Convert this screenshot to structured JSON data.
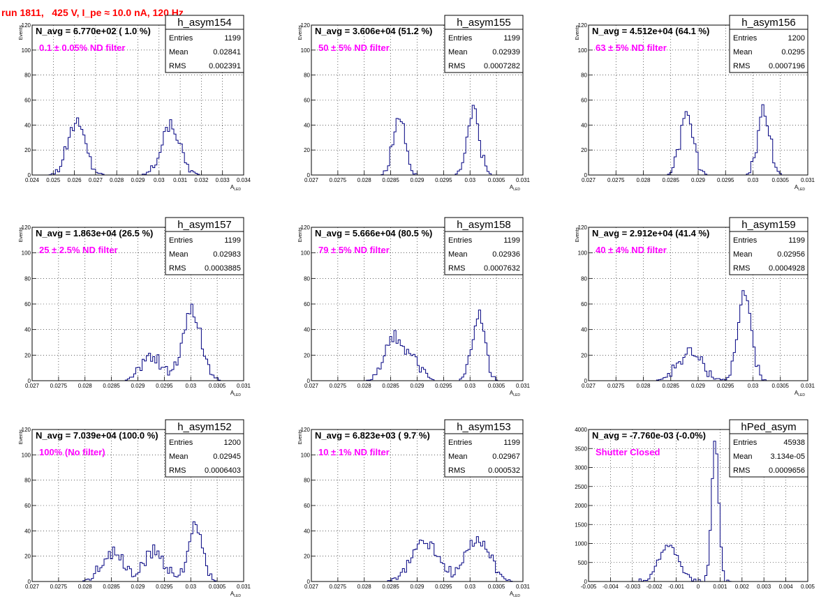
{
  "page_title": "run 1811,   425 V, I_pe ≈ 10.0 nA, 120 Hz",
  "colors": {
    "hist": "#000080",
    "label": "#ff00ff",
    "title": "#ff0000",
    "frame": "#000000",
    "grid": "#000000"
  },
  "chart_data": [
    {
      "type": "bar",
      "hist_name": "h_asym154",
      "navg": "N_avg = 6.770e+02 ( 1.0 %)",
      "filter": "0.1 ± 0.05% ND filter",
      "stats": {
        "entries": "1199",
        "mean": "0.02841",
        "rms": "0.002391"
      },
      "ylabel": "Events",
      "xlabel": "A_LED",
      "xlim": [
        0.024,
        0.034
      ],
      "ylim": [
        0,
        120
      ],
      "xticks": [
        0.024,
        0.025,
        0.026,
        0.027,
        0.028,
        0.029,
        0.03,
        0.031,
        0.032,
        0.033,
        0.034
      ],
      "xtick_labels": [
        "0.024",
        "0.025",
        "0.026",
        "0.027",
        "0.028",
        "0.029",
        "0.03",
        "0.031",
        "0.032",
        "0.033",
        "0.034"
      ],
      "yticks": [
        0,
        20,
        40,
        60,
        80,
        100,
        120
      ],
      "peaks": [
        {
          "mu": 0.0261,
          "sigma": 0.00042,
          "amp": 42,
          "jitter": 5
        },
        {
          "mu": 0.03055,
          "sigma": 0.00045,
          "amp": 40,
          "jitter": 5
        }
      ],
      "bin_width": 0.0001
    },
    {
      "type": "bar",
      "hist_name": "h_asym155",
      "navg": "N_avg = 3.606e+04 (51.2 %)",
      "filter": "50 ± 5% ND filter",
      "stats": {
        "entries": "1199",
        "mean": "0.02939",
        "rms": "0.0007282"
      },
      "ylabel": "Events",
      "xlabel": "A_LED",
      "xlim": [
        0.027,
        0.031
      ],
      "ylim": [
        0,
        120
      ],
      "xticks": [
        0.027,
        0.0275,
        0.028,
        0.0285,
        0.029,
        0.0295,
        0.03,
        0.0305,
        0.031
      ],
      "xtick_labels": [
        "0.027",
        "0.0275",
        "0.028",
        "0.0285",
        "0.029",
        "0.0295",
        "0.03",
        "0.0305",
        "0.031"
      ],
      "yticks": [
        0,
        20,
        40,
        60,
        80,
        100,
        120
      ],
      "peaks": [
        {
          "mu": 0.02866,
          "sigma": 0.00011,
          "amp": 50,
          "jitter": 6
        },
        {
          "mu": 0.03006,
          "sigma": 0.00011,
          "amp": 52,
          "jitter": 6
        }
      ],
      "bin_width": 4e-05
    },
    {
      "type": "bar",
      "hist_name": "h_asym156",
      "navg": "N_avg = 4.512e+04 (64.1 %)",
      "filter": "63 ± 5% ND filter",
      "stats": {
        "entries": "1200",
        "mean": "0.0295",
        "rms": "0.0007196"
      },
      "ylabel": "Events",
      "xlabel": "A_LED",
      "xlim": [
        0.027,
        0.031
      ],
      "ylim": [
        0,
        120
      ],
      "xticks": [
        0.027,
        0.0275,
        0.028,
        0.0285,
        0.029,
        0.0295,
        0.03,
        0.0305,
        0.031
      ],
      "xtick_labels": [
        "0.027",
        "0.0275",
        "0.028",
        "0.0285",
        "0.029",
        "0.0295",
        "0.03",
        "0.0305",
        "0.031"
      ],
      "yticks": [
        0,
        20,
        40,
        60,
        80,
        100,
        120
      ],
      "peaks": [
        {
          "mu": 0.02879,
          "sigma": 0.00012,
          "amp": 46,
          "jitter": 6
        },
        {
          "mu": 0.0302,
          "sigma": 0.00011,
          "amp": 52,
          "jitter": 6
        }
      ],
      "bin_width": 4e-05
    },
    {
      "type": "bar",
      "hist_name": "h_asym157",
      "navg": "N_avg = 1.863e+04 (26.5 %)",
      "filter": "25 ± 2.5% ND filter",
      "stats": {
        "entries": "1199",
        "mean": "0.02983",
        "rms": "0.0003885"
      },
      "ylabel": "Events",
      "xlabel": "A_LED",
      "xlim": [
        0.027,
        0.031
      ],
      "ylim": [
        0,
        120
      ],
      "xticks": [
        0.027,
        0.0275,
        0.028,
        0.0285,
        0.029,
        0.0295,
        0.03,
        0.0305,
        0.031
      ],
      "xtick_labels": [
        "0.027",
        "0.0275",
        "0.028",
        "0.0285",
        "0.029",
        "0.0295",
        "0.03",
        "0.0305",
        "0.031"
      ],
      "yticks": [
        0,
        20,
        40,
        60,
        80,
        100,
        120
      ],
      "peaks": [
        {
          "mu": 0.02925,
          "sigma": 0.00018,
          "amp": 20,
          "jitter": 5
        },
        {
          "mu": 0.03002,
          "sigma": 0.00018,
          "amp": 55,
          "jitter": 6
        }
      ],
      "bin_width": 4e-05
    },
    {
      "type": "bar",
      "hist_name": "h_asym158",
      "navg": "N_avg = 5.666e+04 (80.5 %)",
      "filter": "79 ± 5% ND filter",
      "stats": {
        "entries": "1199",
        "mean": "0.02936",
        "rms": "0.0007632"
      },
      "ylabel": "Events",
      "xlabel": "A_LED",
      "xlim": [
        0.027,
        0.031
      ],
      "ylim": [
        0,
        120
      ],
      "xticks": [
        0.027,
        0.0275,
        0.028,
        0.0285,
        0.029,
        0.0295,
        0.03,
        0.0305,
        0.031
      ],
      "xtick_labels": [
        "0.027",
        "0.0275",
        "0.028",
        "0.0285",
        "0.029",
        "0.0295",
        "0.03",
        "0.0305",
        "0.031"
      ],
      "yticks": [
        0,
        20,
        40,
        60,
        80,
        100,
        120
      ],
      "peaks": [
        {
          "mu": 0.02858,
          "sigma": 0.00018,
          "amp": 34,
          "jitter": 5
        },
        {
          "mu": 0.02895,
          "sigma": 0.00015,
          "amp": 12,
          "jitter": 4
        },
        {
          "mu": 0.03016,
          "sigma": 0.00012,
          "amp": 52,
          "jitter": 6
        }
      ],
      "bin_width": 4e-05
    },
    {
      "type": "bar",
      "hist_name": "h_asym159",
      "navg": "N_avg = 2.912e+04 (41.4 %)",
      "filter": "40 ± 4% ND filter",
      "stats": {
        "entries": "1199",
        "mean": "0.02956",
        "rms": "0.0004928"
      },
      "ylabel": "Events",
      "xlabel": "A_LED",
      "xlim": [
        0.027,
        0.031
      ],
      "ylim": [
        0,
        120
      ],
      "xticks": [
        0.027,
        0.0275,
        0.028,
        0.0285,
        0.029,
        0.0295,
        0.03,
        0.0305,
        0.031
      ],
      "xtick_labels": [
        "0.027",
        "0.0275",
        "0.028",
        "0.0285",
        "0.029",
        "0.0295",
        "0.03",
        "0.0305",
        "0.031"
      ],
      "yticks": [
        0,
        20,
        40,
        60,
        80,
        100,
        120
      ],
      "peaks": [
        {
          "mu": 0.02885,
          "sigma": 0.00022,
          "amp": 22,
          "jitter": 5
        },
        {
          "mu": 0.02985,
          "sigma": 0.00012,
          "amp": 70,
          "jitter": 8
        }
      ],
      "bin_width": 4e-05
    },
    {
      "type": "bar",
      "hist_name": "h_asym152",
      "navg": "N_avg = 7.039e+04 (100.0 %)",
      "filter": "100% (No filter)",
      "stats": {
        "entries": "1200",
        "mean": "0.02945",
        "rms": "0.0006403"
      },
      "ylabel": "Events",
      "xlabel": "A_LED",
      "xlim": [
        0.027,
        0.031
      ],
      "ylim": [
        0,
        120
      ],
      "xticks": [
        0.027,
        0.0275,
        0.028,
        0.0285,
        0.029,
        0.0295,
        0.03,
        0.0305,
        0.031
      ],
      "xtick_labels": [
        "0.027",
        "0.0275",
        "0.028",
        "0.0285",
        "0.029",
        "0.0295",
        "0.03",
        "0.0305",
        "0.031"
      ],
      "yticks": [
        0,
        20,
        40,
        60,
        80,
        100,
        120
      ],
      "peaks": [
        {
          "mu": 0.02852,
          "sigma": 0.0002,
          "amp": 24,
          "jitter": 6
        },
        {
          "mu": 0.02932,
          "sigma": 0.0002,
          "amp": 24,
          "jitter": 6
        },
        {
          "mu": 0.03008,
          "sigma": 0.00014,
          "amp": 42,
          "jitter": 8
        }
      ],
      "bin_width": 4e-05
    },
    {
      "type": "bar",
      "hist_name": "h_asym153",
      "navg": "N_avg = 6.823e+03 ( 9.7 %)",
      "filter": "10 ± 1% ND filter",
      "stats": {
        "entries": "1199",
        "mean": "0.02967",
        "rms": "0.000532"
      },
      "ylabel": "Events",
      "xlabel": "A_LED",
      "xlim": [
        0.027,
        0.031
      ],
      "ylim": [
        0,
        120
      ],
      "xticks": [
        0.027,
        0.0275,
        0.028,
        0.0285,
        0.029,
        0.0295,
        0.03,
        0.0305,
        0.031
      ],
      "xtick_labels": [
        "0.027",
        "0.0275",
        "0.028",
        "0.0285",
        "0.029",
        "0.0295",
        "0.03",
        "0.0305",
        "0.031"
      ],
      "yticks": [
        0,
        20,
        40,
        60,
        80,
        100,
        120
      ],
      "peaks": [
        {
          "mu": 0.02915,
          "sigma": 0.00025,
          "amp": 32,
          "jitter": 5
        },
        {
          "mu": 0.03015,
          "sigma": 0.00022,
          "amp": 34,
          "jitter": 5
        }
      ],
      "bin_width": 4e-05
    },
    {
      "type": "bar",
      "hist_name": "hPed_asym",
      "navg": "N_avg = -7.760e-03 (-0.0%)",
      "filter": "Shutter Closed",
      "stats": {
        "entries": "45938",
        "mean": "3.134e-05",
        "rms": "0.0009656"
      },
      "ylabel": "",
      "xlabel": "",
      "xlim": [
        -0.005,
        0.005
      ],
      "ylim": [
        0,
        4000
      ],
      "xticks": [
        -0.005,
        -0.004,
        -0.003,
        -0.002,
        -0.001,
        0,
        0.001,
        0.002,
        0.003,
        0.004,
        0.005
      ],
      "xtick_labels": [
        "-0.005",
        "-0.004",
        "-0.003",
        "-0.002",
        "-0.001",
        "0",
        "0.001",
        "0.002",
        "0.003",
        "0.004",
        "0.005"
      ],
      "yticks": [
        0,
        500,
        1000,
        1500,
        2000,
        2500,
        3000,
        3500,
        4000
      ],
      "peaks": [
        {
          "mu": -0.00135,
          "sigma": 0.00045,
          "amp": 950,
          "jitter": 60
        },
        {
          "mu": 0.00078,
          "sigma": 0.00016,
          "amp": 3700,
          "jitter": 150
        }
      ],
      "bin_width": 0.0001
    }
  ]
}
